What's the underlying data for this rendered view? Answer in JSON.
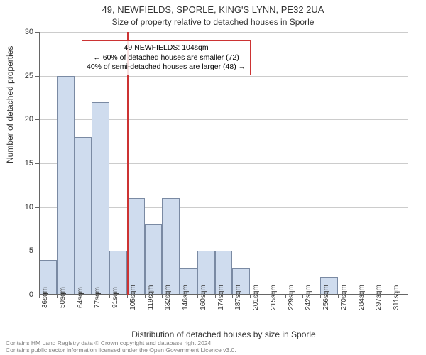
{
  "title_main": "49, NEWFIELDS, SPORLE, KING'S LYNN, PE32 2UA",
  "title_sub": "Size of property relative to detached houses in Sporle",
  "yaxis_label": "Number of detached properties",
  "xaxis_label": "Distribution of detached houses by size in Sporle",
  "footer_line1": "Contains HM Land Registry data © Crown copyright and database right 2024.",
  "footer_line2": "Contains public sector information licensed under the Open Government Licence v3.0.",
  "chart": {
    "type": "histogram",
    "ylim": [
      0,
      30
    ],
    "ytick_step": 5,
    "bar_fill": "#cfdcee",
    "bar_border": "#7a8aa3",
    "grid_color": "#cccccc",
    "ref_line_color": "#cc3333",
    "ref_line_x_index": 5,
    "bins": [
      {
        "label": "36sqm",
        "value": 4
      },
      {
        "label": "50sqm",
        "value": 25
      },
      {
        "label": "64sqm",
        "value": 18
      },
      {
        "label": "77sqm",
        "value": 22
      },
      {
        "label": "91sqm",
        "value": 5
      },
      {
        "label": "105sqm",
        "value": 11
      },
      {
        "label": "119sqm",
        "value": 8
      },
      {
        "label": "132sqm",
        "value": 11
      },
      {
        "label": "146sqm",
        "value": 3
      },
      {
        "label": "160sqm",
        "value": 5
      },
      {
        "label": "174sqm",
        "value": 5
      },
      {
        "label": "187sqm",
        "value": 3
      },
      {
        "label": "201sqm",
        "value": 0
      },
      {
        "label": "215sqm",
        "value": 0
      },
      {
        "label": "229sqm",
        "value": 0
      },
      {
        "label": "242sqm",
        "value": 0
      },
      {
        "label": "256sqm",
        "value": 2
      },
      {
        "label": "270sqm",
        "value": 0
      },
      {
        "label": "284sqm",
        "value": 0
      },
      {
        "label": "297sqm",
        "value": 0
      },
      {
        "label": "311sqm",
        "value": 0
      }
    ]
  },
  "annotation": {
    "line1": "49 NEWFIELDS: 104sqm",
    "line2": "← 60% of detached houses are smaller (72)",
    "line3": "40% of semi-detached houses are larger (48) →",
    "border_color": "#cc3333"
  }
}
